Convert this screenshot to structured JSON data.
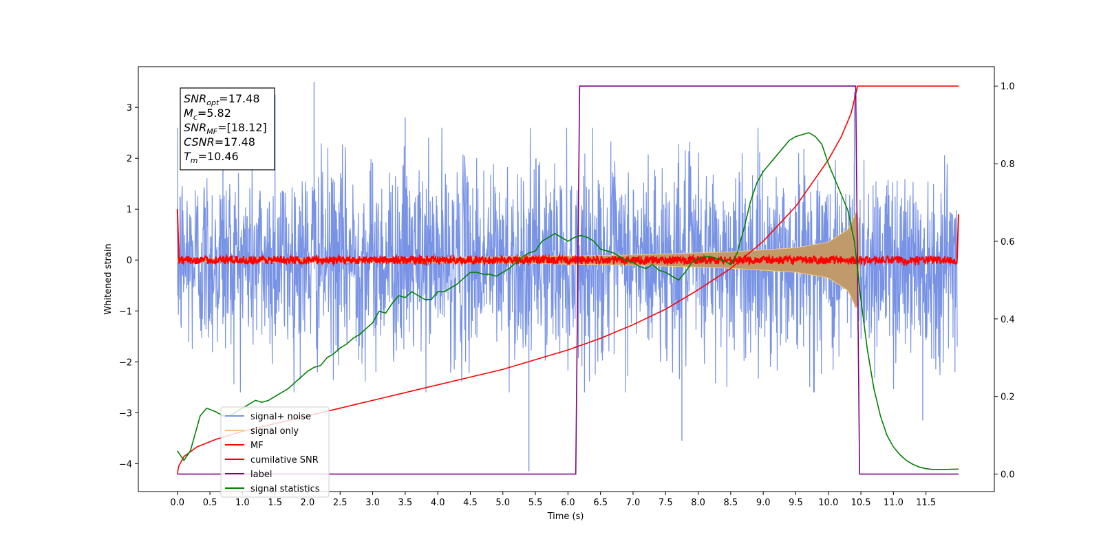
{
  "chart_data": {
    "type": "line",
    "title": "",
    "xlabel": "Time (s)",
    "ylabel": "Whitened strain",
    "xlim": [
      -0.6,
      12.55
    ],
    "ylim": [
      -4.55,
      3.8
    ],
    "y2lim": [
      -0.045,
      1.05
    ],
    "x_ticks": [
      0.0,
      0.5,
      1.0,
      1.5,
      2.0,
      2.5,
      3.0,
      3.5,
      4.0,
      4.5,
      5.0,
      5.5,
      6.0,
      6.5,
      7.0,
      7.5,
      8.0,
      8.5,
      9.0,
      9.5,
      10.0,
      10.5,
      11.0,
      11.5
    ],
    "x_tick_labels": [
      "0.0",
      "0.5",
      "1.0",
      "1.5",
      "2.0",
      "2.5",
      "3.0",
      "3.5",
      "4.0",
      "4.5",
      "5.0",
      "5.5",
      "6.0",
      "6.5",
      "7.0",
      "7.5",
      "8.0",
      "8.5",
      "9.0",
      "9.5",
      "10.0",
      "10.5",
      "11.0",
      "11.5"
    ],
    "y_ticks": [
      3,
      2,
      1,
      0,
      -1,
      -2,
      -3,
      -4
    ],
    "y_tick_labels": [
      "3",
      "2",
      "1",
      "0",
      "−1",
      "−2",
      "−3",
      "−4"
    ],
    "y2_ticks": [
      1.0,
      0.8,
      0.6,
      0.4,
      0.2,
      0.0
    ],
    "y2_tick_labels": [
      "1.0",
      "0.8",
      "0.6",
      "0.4",
      "0.2",
      "0.0"
    ],
    "grid": false,
    "legend_position": "lower-left",
    "series": [
      {
        "name": "signal+ noise",
        "axis": "left",
        "color": "#7893e6",
        "style": "noise",
        "description_range": [
          -2.3,
          2.3
        ],
        "spikes": [
          {
            "x": 2.1,
            "y": 3.5
          },
          {
            "x": 0.7,
            "y": 3.2
          },
          {
            "x": 1.5,
            "y": 3.25
          },
          {
            "x": 5.4,
            "y": -4.15
          },
          {
            "x": 7.75,
            "y": -3.55
          },
          {
            "x": 11.45,
            "y": -3.15
          },
          {
            "x": 10.4,
            "y": 3.3
          },
          {
            "x": 3.5,
            "y": 2.8
          }
        ]
      },
      {
        "name": "signal only",
        "axis": "left",
        "color": "#f5c97a",
        "style": "chirp",
        "envelope": [
          {
            "x": 0.0,
            "y": 0.03
          },
          {
            "x": 3.0,
            "y": 0.04
          },
          {
            "x": 5.0,
            "y": 0.06
          },
          {
            "x": 7.0,
            "y": 0.1
          },
          {
            "x": 8.5,
            "y": 0.16
          },
          {
            "x": 9.5,
            "y": 0.24
          },
          {
            "x": 10.0,
            "y": 0.35
          },
          {
            "x": 10.3,
            "y": 0.6
          },
          {
            "x": 10.45,
            "y": 1.0
          },
          {
            "x": 10.48,
            "y": 0.0
          }
        ]
      },
      {
        "name": "MF",
        "axis": "left",
        "color": "#ff0000",
        "style": "mf",
        "amplitude": 0.08
      },
      {
        "name": "cumilative SNR",
        "axis": "right",
        "color": "#ff0000",
        "style": "line",
        "x": [
          0.0,
          0.02,
          0.1,
          0.3,
          0.6,
          1.0,
          1.5,
          2.0,
          2.5,
          3.0,
          3.5,
          4.0,
          4.5,
          5.0,
          5.5,
          6.0,
          6.5,
          7.0,
          7.5,
          8.0,
          8.5,
          9.0,
          9.5,
          10.0,
          10.2,
          10.35,
          10.45,
          10.5,
          11.0,
          11.5,
          12.0
        ],
        "y": [
          0.0,
          0.02,
          0.045,
          0.07,
          0.09,
          0.11,
          0.13,
          0.15,
          0.17,
          0.19,
          0.21,
          0.23,
          0.25,
          0.27,
          0.295,
          0.32,
          0.35,
          0.385,
          0.425,
          0.475,
          0.53,
          0.6,
          0.69,
          0.81,
          0.87,
          0.93,
          1.0,
          1.0,
          1.0,
          1.0,
          1.0
        ]
      },
      {
        "name": "label",
        "axis": "right",
        "color": "#800080",
        "style": "line",
        "x": [
          0.0,
          6.12,
          6.18,
          10.42,
          10.48,
          12.0
        ],
        "y": [
          0.0,
          0.0,
          1.0,
          1.0,
          0.0,
          0.0
        ]
      },
      {
        "name": "signal statistics",
        "axis": "right",
        "color": "#008000",
        "style": "line",
        "x": [
          0.0,
          0.1,
          0.2,
          0.35,
          0.45,
          0.6,
          0.7,
          0.8,
          0.9,
          1.0,
          1.1,
          1.2,
          1.3,
          1.4,
          1.5,
          1.6,
          1.7,
          1.8,
          1.9,
          2.0,
          2.1,
          2.2,
          2.3,
          2.4,
          2.5,
          2.6,
          2.7,
          2.8,
          2.9,
          3.0,
          3.1,
          3.2,
          3.3,
          3.4,
          3.5,
          3.6,
          3.7,
          3.8,
          3.9,
          4.0,
          4.1,
          4.2,
          4.3,
          4.4,
          4.5,
          4.6,
          4.7,
          4.8,
          4.9,
          5.0,
          5.1,
          5.2,
          5.3,
          5.4,
          5.5,
          5.6,
          5.7,
          5.8,
          5.9,
          6.0,
          6.1,
          6.2,
          6.3,
          6.4,
          6.5,
          6.6,
          6.7,
          6.8,
          6.9,
          7.0,
          7.1,
          7.2,
          7.3,
          7.4,
          7.5,
          7.6,
          7.7,
          7.8,
          7.9,
          8.0,
          8.1,
          8.2,
          8.3,
          8.4,
          8.5,
          8.6,
          8.7,
          8.8,
          8.9,
          9.0,
          9.1,
          9.2,
          9.3,
          9.4,
          9.5,
          9.6,
          9.7,
          9.8,
          9.9,
          10.0,
          10.1,
          10.2,
          10.3,
          10.4,
          10.5,
          10.6,
          10.7,
          10.8,
          10.9,
          11.0,
          11.1,
          11.2,
          11.3,
          11.4,
          11.5,
          11.6,
          11.8,
          12.0
        ],
        "y": [
          0.06,
          0.035,
          0.06,
          0.15,
          0.17,
          0.16,
          0.15,
          0.15,
          0.16,
          0.17,
          0.18,
          0.19,
          0.185,
          0.19,
          0.2,
          0.21,
          0.22,
          0.235,
          0.25,
          0.265,
          0.275,
          0.28,
          0.3,
          0.31,
          0.325,
          0.335,
          0.35,
          0.36,
          0.375,
          0.39,
          0.42,
          0.415,
          0.44,
          0.46,
          0.455,
          0.47,
          0.46,
          0.45,
          0.45,
          0.47,
          0.47,
          0.48,
          0.49,
          0.505,
          0.52,
          0.52,
          0.515,
          0.515,
          0.51,
          0.52,
          0.53,
          0.545,
          0.56,
          0.57,
          0.575,
          0.6,
          0.61,
          0.62,
          0.61,
          0.6,
          0.61,
          0.615,
          0.61,
          0.6,
          0.58,
          0.575,
          0.57,
          0.56,
          0.55,
          0.545,
          0.535,
          0.53,
          0.54,
          0.525,
          0.52,
          0.51,
          0.5,
          0.52,
          0.545,
          0.555,
          0.56,
          0.56,
          0.555,
          0.55,
          0.54,
          0.57,
          0.63,
          0.7,
          0.75,
          0.78,
          0.8,
          0.82,
          0.84,
          0.86,
          0.87,
          0.875,
          0.88,
          0.87,
          0.85,
          0.8,
          0.76,
          0.72,
          0.68,
          0.6,
          0.45,
          0.32,
          0.22,
          0.15,
          0.1,
          0.07,
          0.05,
          0.035,
          0.025,
          0.018,
          0.014,
          0.012,
          0.012,
          0.013
        ]
      }
    ],
    "annotation": {
      "lines": [
        {
          "base": "SNR",
          "sub": "opt",
          "value": "=17.48"
        },
        {
          "base": "M",
          "sub": "c",
          "value": "=5.82"
        },
        {
          "base": "SNR",
          "sub": "MF",
          "value": "=[18.12]"
        },
        {
          "base": "CSNR",
          "sub": "",
          "value": "=17.48"
        },
        {
          "base": "T",
          "sub": "m",
          "value": "=10.46"
        }
      ]
    }
  }
}
